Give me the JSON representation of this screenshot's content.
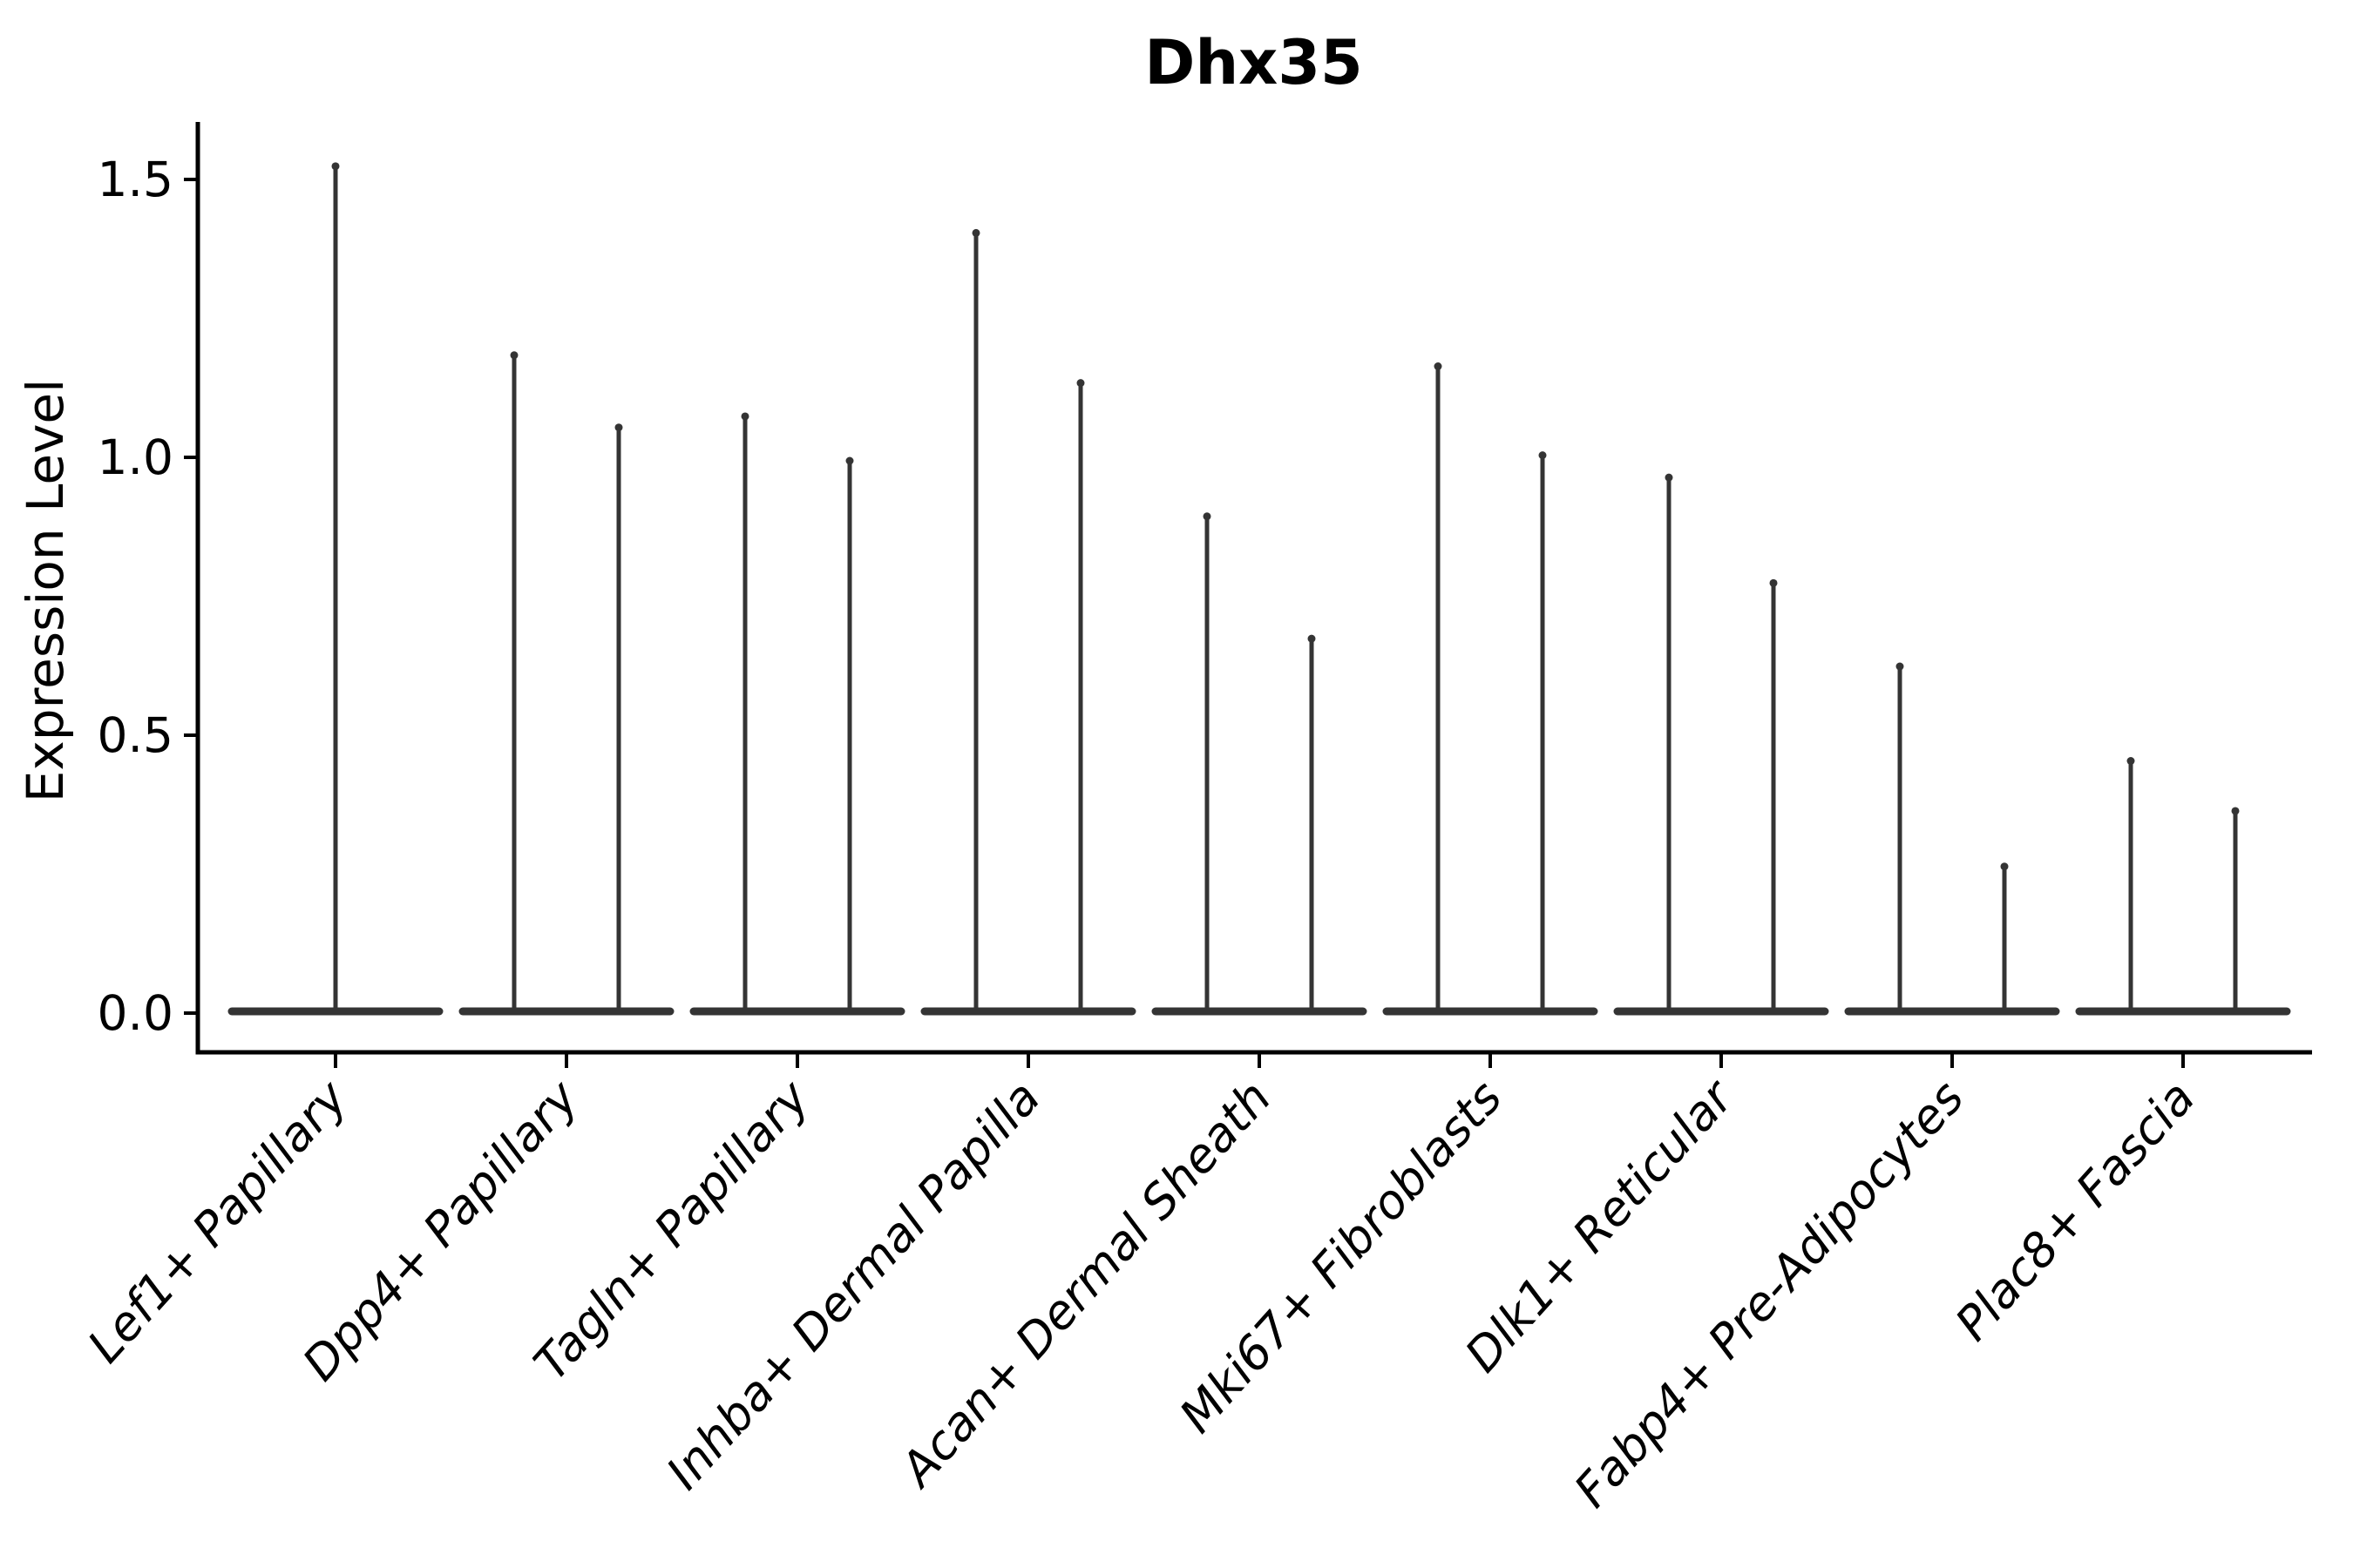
{
  "chart_data": {
    "type": "violin",
    "title": "Dhx35",
    "ylabel": "Expression Level",
    "xlabel": "",
    "y_ticks": [
      "0.0",
      "0.5",
      "1.0",
      "1.5"
    ],
    "y_tick_values": [
      0.0,
      0.5,
      1.0,
      1.5
    ],
    "ylim": [
      -0.07,
      1.6
    ],
    "grid": false,
    "legend": "none",
    "baseline_value": 0.0,
    "groups": [
      {
        "category": "Lef1+ Papillary",
        "violins": [
          {
            "position": "center",
            "max_expression": 1.53
          }
        ]
      },
      {
        "category": "Dpp4+ Papillary",
        "violins": [
          {
            "position": "left",
            "max_expression": 1.19
          },
          {
            "position": "right",
            "max_expression": 1.06
          }
        ]
      },
      {
        "category": "Tagln+ Papillary",
        "violins": [
          {
            "position": "left",
            "max_expression": 1.08
          },
          {
            "position": "right",
            "max_expression": 1.0
          }
        ]
      },
      {
        "category": "Inhba+ Dermal Papilla",
        "violins": [
          {
            "position": "left",
            "max_expression": 1.41
          },
          {
            "position": "right",
            "max_expression": 1.14
          }
        ]
      },
      {
        "category": "Acan+ Dermal Sheath",
        "violins": [
          {
            "position": "left",
            "max_expression": 0.9
          },
          {
            "position": "right",
            "max_expression": 0.68
          }
        ]
      },
      {
        "category": "Mki67+ Fibroblasts",
        "violins": [
          {
            "position": "left",
            "max_expression": 1.17
          },
          {
            "position": "right",
            "max_expression": 1.01
          }
        ]
      },
      {
        "category": "Dlk1+ Reticular",
        "violins": [
          {
            "position": "left",
            "max_expression": 0.97
          },
          {
            "position": "right",
            "max_expression": 0.78
          }
        ]
      },
      {
        "category": "Fabp4+ Pre-Adipocytes",
        "violins": [
          {
            "position": "left",
            "max_expression": 0.63
          },
          {
            "position": "right",
            "max_expression": 0.27
          }
        ]
      },
      {
        "category": "Plac8+ Fascia",
        "violins": [
          {
            "position": "left",
            "max_expression": 0.46
          },
          {
            "position": "right",
            "max_expression": 0.37
          }
        ]
      }
    ],
    "colors": {
      "violin": "#343434",
      "axis": "#000000",
      "text": "#000000"
    }
  }
}
